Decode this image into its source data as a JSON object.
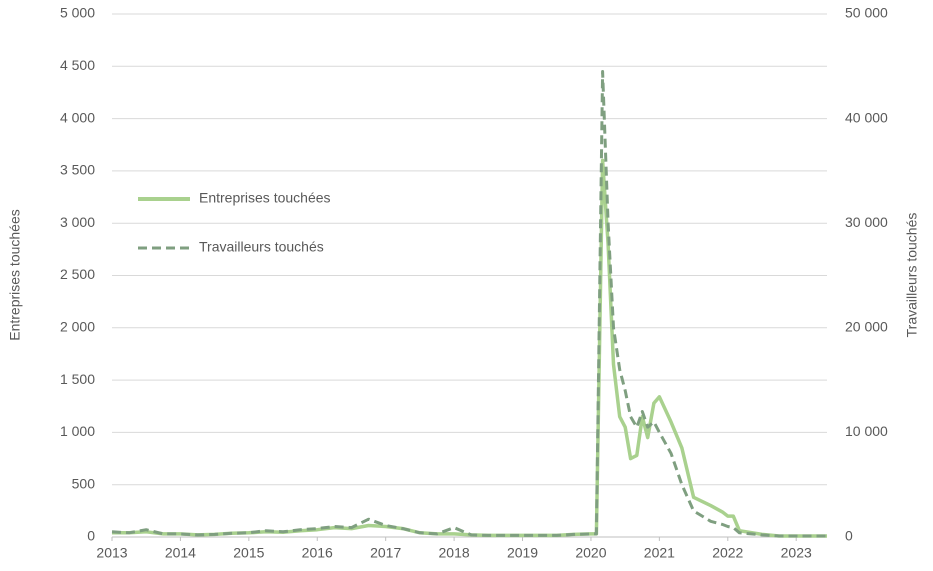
{
  "chart_data": {
    "type": "line",
    "ylabel": "Entreprises touchées",
    "y2label": "Travailleurs touchés",
    "x": [
      2013,
      2013.25,
      2013.5,
      2013.75,
      2014,
      2014.25,
      2014.5,
      2014.75,
      2015,
      2015.25,
      2015.5,
      2015.75,
      2016,
      2016.25,
      2016.5,
      2016.75,
      2017,
      2017.25,
      2017.5,
      2017.75,
      2018,
      2018.25,
      2018.5,
      2018.75,
      2019,
      2019.25,
      2019.5,
      2019.75,
      2020,
      2020.08,
      2020.17,
      2020.25,
      2020.33,
      2020.42,
      2020.5,
      2020.58,
      2020.67,
      2020.75,
      2020.83,
      2020.92,
      2021,
      2021.17,
      2021.33,
      2021.5,
      2021.75,
      2021.92,
      2022,
      2022.08,
      2022.17,
      2022.5,
      2022.75,
      2023,
      2023.25,
      2023.45
    ],
    "series": [
      {
        "name": "Entreprises touchées",
        "color": "#a9d18e",
        "dash": false,
        "axis": "y",
        "values": [
          40,
          40,
          50,
          30,
          30,
          20,
          25,
          35,
          40,
          50,
          45,
          60,
          70,
          90,
          80,
          110,
          100,
          80,
          40,
          30,
          30,
          20,
          15,
          15,
          15,
          15,
          15,
          25,
          30,
          30,
          3600,
          2800,
          1650,
          1150,
          1050,
          750,
          780,
          1150,
          950,
          1280,
          1340,
          1100,
          850,
          380,
          300,
          240,
          200,
          200,
          60,
          25,
          10,
          10,
          10,
          10
        ]
      },
      {
        "name": "Travailleurs touchés",
        "color": "#7f9f80",
        "dash": true,
        "axis": "y2",
        "values": [
          500,
          400,
          700,
          300,
          300,
          200,
          250,
          350,
          400,
          600,
          500,
          700,
          800,
          1000,
          900,
          1700,
          1100,
          800,
          400,
          300,
          900,
          200,
          150,
          150,
          150,
          150,
          150,
          250,
          300,
          300,
          44500,
          30000,
          20000,
          16000,
          14000,
          11500,
          10500,
          12000,
          10500,
          11000,
          10000,
          8000,
          5000,
          2500,
          1500,
          1200,
          1000,
          900,
          400,
          200,
          100,
          100,
          100,
          100
        ]
      }
    ],
    "xlim": [
      2013,
      2023.45
    ],
    "xticks": [
      2013,
      2014,
      2015,
      2016,
      2017,
      2018,
      2019,
      2020,
      2021,
      2022,
      2023
    ],
    "ylim": [
      0,
      5000
    ],
    "yticks": [
      0,
      500,
      {
        "value": 1000,
        "label": "1 000"
      },
      {
        "value": 1500,
        "label": "1 500"
      },
      {
        "value": 2000,
        "label": "2 000"
      },
      {
        "value": 2500,
        "label": "2 500"
      },
      {
        "value": 3000,
        "label": "3 000"
      },
      {
        "value": 3500,
        "label": "3 500"
      },
      {
        "value": 4000,
        "label": "4 000"
      },
      {
        "value": 4500,
        "label": "4 500"
      },
      {
        "value": 5000,
        "label": "5 000"
      }
    ],
    "y2lim": [
      0,
      50000
    ],
    "y2ticks": [
      0,
      {
        "value": 10000,
        "label": "10 000"
      },
      {
        "value": 20000,
        "label": "20 000"
      },
      {
        "value": 30000,
        "label": "30 000"
      },
      {
        "value": 40000,
        "label": "40 000"
      },
      {
        "value": 50000,
        "label": "50 000"
      }
    ],
    "grid": true,
    "legend": "upper left"
  }
}
